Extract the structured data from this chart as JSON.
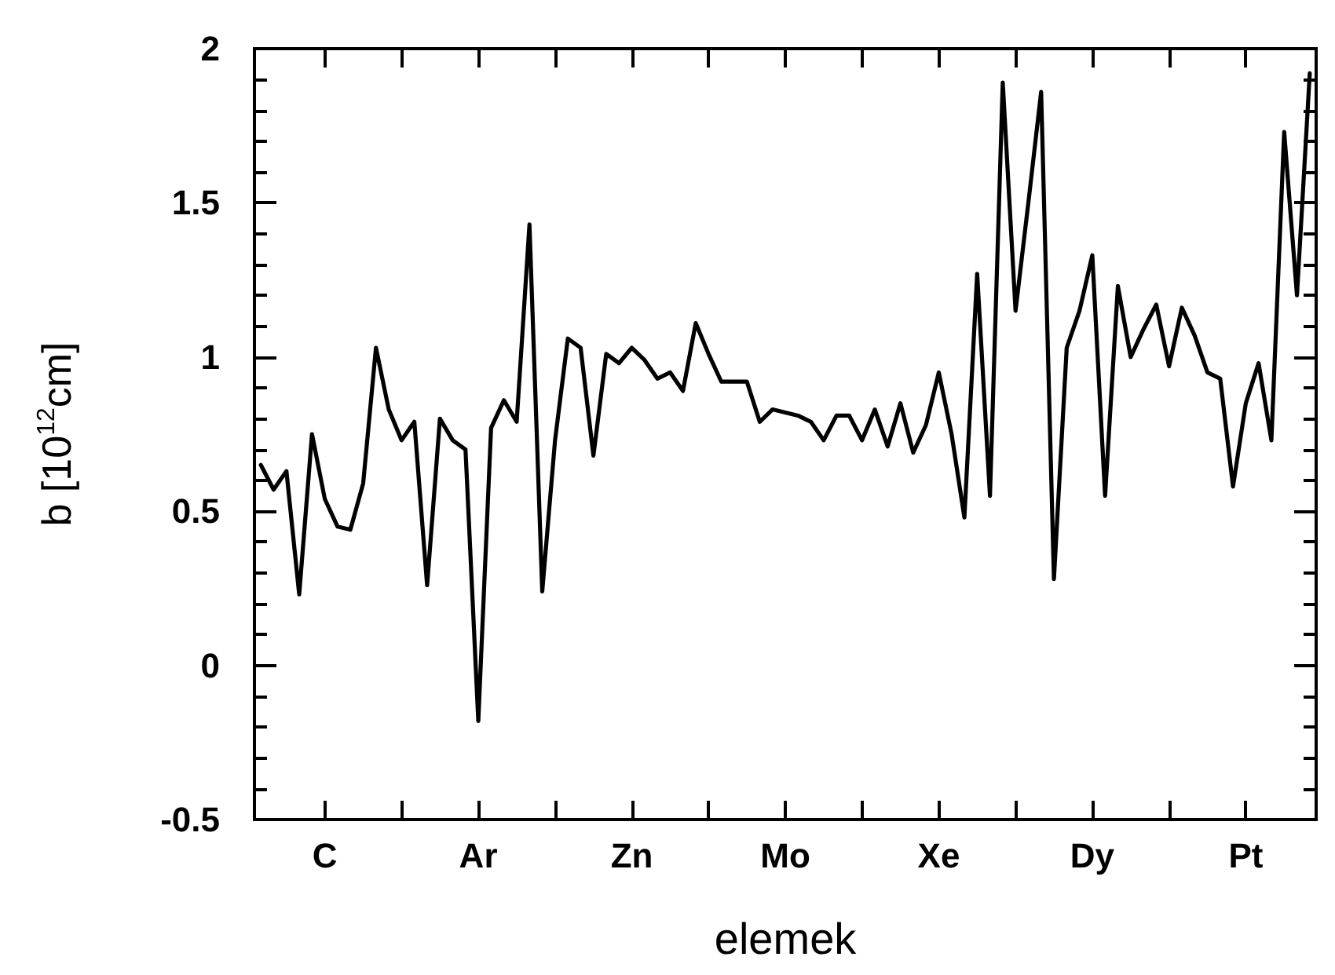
{
  "chart_data": {
    "type": "line",
    "xlabel": "elemek",
    "ylabel": "b [10$^{12}$cm]",
    "categories": [
      null,
      null,
      null,
      null,
      null,
      "C",
      null,
      null,
      null,
      null,
      null,
      null,
      null,
      null,
      null,
      null,
      null,
      "Ar",
      null,
      null,
      null,
      null,
      null,
      null,
      null,
      null,
      null,
      null,
      null,
      "Zn",
      null,
      null,
      null,
      null,
      null,
      null,
      null,
      null,
      null,
      null,
      null,
      "Mo",
      null,
      null,
      null,
      null,
      null,
      null,
      null,
      null,
      null,
      null,
      null,
      "Xe",
      null,
      null,
      null,
      null,
      null,
      null,
      null,
      null,
      null,
      null,
      null,
      "Dy",
      null,
      null,
      null,
      null,
      null,
      null,
      null,
      null,
      null,
      null,
      null,
      "Pt",
      null,
      null,
      null,
      null,
      null
    ],
    "series": [
      {
        "color": "#000000",
        "values": [
          0.65,
          0.57,
          0.63,
          0.23,
          0.75,
          0.54,
          0.45,
          0.44,
          0.59,
          1.03,
          0.83,
          0.73,
          0.79,
          0.26,
          0.8,
          0.73,
          0.7,
          -0.18,
          0.77,
          0.86,
          0.79,
          1.43,
          0.24,
          0.73,
          1.06,
          1.03,
          0.68,
          1.01,
          0.98,
          1.03,
          0.99,
          0.93,
          0.95,
          0.89,
          1.11,
          1.01,
          0.92,
          0.92,
          0.92,
          0.79,
          0.83,
          0.82,
          0.81,
          0.79,
          0.73,
          0.81,
          0.81,
          0.73,
          0.83,
          0.71,
          0.85,
          0.69,
          0.78,
          0.95,
          0.75,
          0.48,
          1.27,
          0.55,
          1.89,
          1.15,
          1.5,
          1.86,
          0.28,
          1.03,
          1.15,
          1.33,
          0.55,
          1.23,
          1.0,
          1.09,
          1.17,
          0.97,
          1.16,
          1.07,
          0.95,
          0.93,
          0.58,
          0.85,
          0.98,
          0.73,
          1.73,
          1.2,
          1.92
        ]
      }
    ],
    "ylim": [
      -0.5,
      2
    ],
    "yticks": [
      -0.5,
      0,
      0.5,
      1,
      1.5,
      2
    ],
    "grid": false,
    "marker": "none",
    "line_style": "solid"
  }
}
